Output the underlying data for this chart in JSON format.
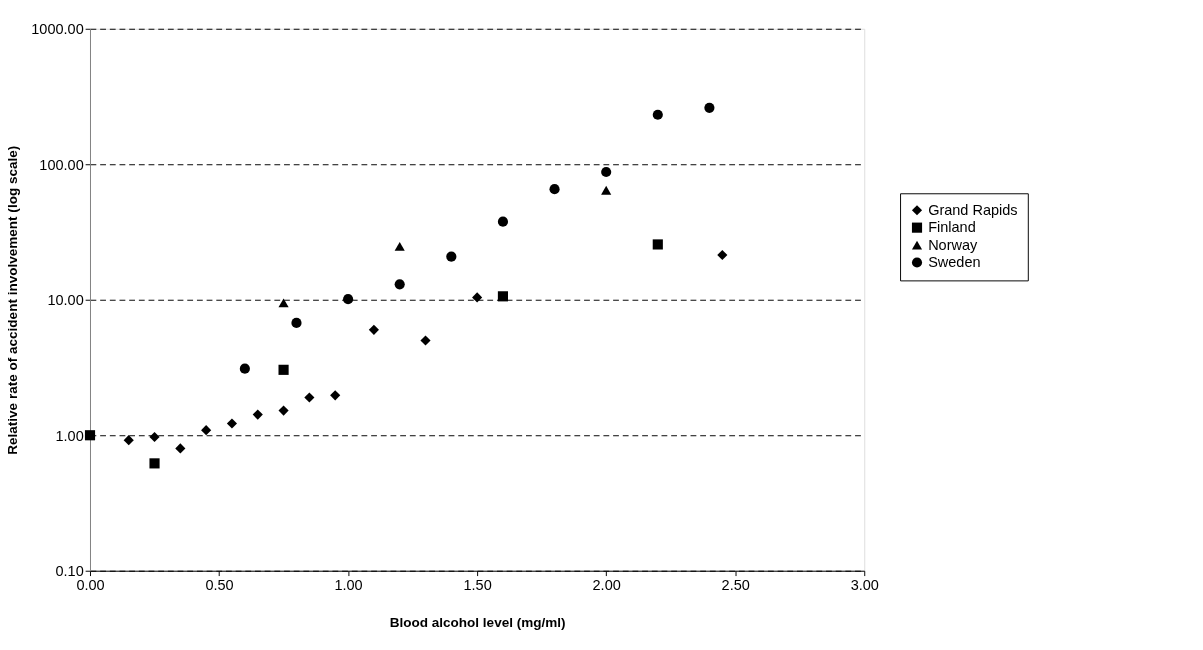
{
  "chart_data": {
    "type": "scatter",
    "xlabel": "Blood alcohol level (mg/ml)",
    "ylabel": "Relative rate of accident involvement (log scale)",
    "series": [
      {
        "name": "Grand Rapids",
        "color": "#000000",
        "marker": "diamond",
        "x": [
          0.15,
          0.25,
          0.35,
          0.45,
          0.55,
          0.65,
          0.75,
          0.85,
          0.95,
          1.1,
          1.3,
          1.5,
          2.45
        ],
        "values": [
          0.92,
          0.97,
          0.8,
          1.09,
          1.22,
          1.42,
          1.52,
          1.9,
          1.97,
          6.0,
          5.0,
          10.4,
          21.4
        ]
      },
      {
        "name": "Finland",
        "color": "#000000",
        "marker": "square",
        "x": [
          0.0,
          0.25,
          0.75,
          1.6,
          2.2
        ],
        "values": [
          1.0,
          0.62,
          3.04,
          10.6,
          25.6
        ]
      },
      {
        "name": "Norway",
        "color": "#000000",
        "marker": "triangle",
        "x": [
          0.75,
          1.2,
          2.0
        ],
        "values": [
          9.5,
          24.8,
          64.3
        ]
      },
      {
        "name": "Sweden",
        "color": "#000000",
        "marker": "circle",
        "x": [
          0.6,
          0.8,
          1.0,
          1.2,
          1.4,
          1.6,
          1.8,
          2.0,
          2.2,
          2.4
        ],
        "values": [
          3.1,
          6.75,
          10.1,
          13.0,
          20.8,
          37.7,
          65.5,
          87.7,
          232,
          261
        ]
      }
    ],
    "log": "y",
    "xlim": [
      0,
      3
    ],
    "xticks": [
      {
        "value": 0,
        "label": "0.00"
      },
      {
        "value": 0.5,
        "label": "0.50"
      },
      {
        "value": 1,
        "label": "1.00"
      },
      {
        "value": 1.5,
        "label": "1.50"
      },
      {
        "value": 2,
        "label": "2.00"
      },
      {
        "value": 2.5,
        "label": "2.50"
      },
      {
        "value": 3,
        "label": "3.00"
      }
    ],
    "ylim": [
      0.1,
      1000
    ],
    "yticks": [
      {
        "value": 0.1,
        "label": "0.10"
      },
      {
        "value": 1,
        "label": "1.00"
      },
      {
        "value": 10,
        "label": "10.00"
      },
      {
        "value": 100,
        "label": "100.00"
      },
      {
        "value": 1000,
        "label": "1000.00"
      }
    ],
    "grid": "y",
    "legend": "right"
  }
}
